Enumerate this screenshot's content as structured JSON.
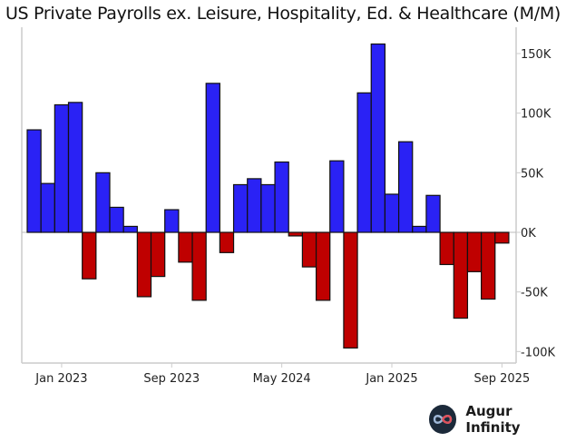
{
  "chart_data": {
    "type": "bar",
    "title": "US Private Payrolls ex. Leisure, Hospitality, Ed. & Healthcare (M/M)",
    "xlabel": "",
    "ylabel": "",
    "categories": [
      "Nov 2022",
      "Dec 2022",
      "Jan 2023",
      "Feb 2023",
      "Mar 2023",
      "Apr 2023",
      "May 2023",
      "Jun 2023",
      "Jul 2023",
      "Aug 2023",
      "Sep 2023",
      "Oct 2023",
      "Nov 2023",
      "Dec 2023",
      "Jan 2024",
      "Feb 2024",
      "Mar 2024",
      "Apr 2024",
      "May 2024",
      "Jun 2024",
      "Jul 2024",
      "Aug 2024",
      "Sep 2024",
      "Oct 2024",
      "Nov 2024",
      "Dec 2024",
      "Jan 2025",
      "Feb 2025",
      "Mar 2025",
      "Apr 2025",
      "May 2025",
      "Jun 2025",
      "Jul 2025",
      "Aug 2025",
      "Sep 2025"
    ],
    "values": [
      86,
      41,
      107,
      109,
      -39,
      50,
      21,
      5,
      -54,
      -37,
      19,
      -25,
      -57,
      125,
      -17,
      40,
      45,
      40,
      59,
      -3,
      -29,
      -57,
      60,
      -97,
      117,
      158,
      32,
      76,
      5,
      31,
      -27,
      -72,
      -33,
      -56,
      -9
    ],
    "units": "thousands",
    "ylim": [
      -110,
      165
    ],
    "yticks": [
      150,
      100,
      50,
      0,
      -50,
      -100
    ],
    "ytick_labels": [
      "150K",
      "100K",
      "50K",
      "0K",
      "-50K",
      "-100K"
    ],
    "xtick_labels": [
      {
        "category": "Jan 2023",
        "label": "Jan 2023"
      },
      {
        "category": "Sep 2023",
        "label": "Sep 2023"
      },
      {
        "category": "May 2024",
        "label": "May 2024"
      },
      {
        "category": "Jan 2025",
        "label": "Jan 2025"
      },
      {
        "category": "Sep 2025",
        "label": "Sep 2025"
      }
    ],
    "colors": {
      "positive": "#2a22f5",
      "negative": "#bf0000"
    },
    "grid": false,
    "legend": "none"
  },
  "branding": {
    "name": "Augur Infinity"
  }
}
